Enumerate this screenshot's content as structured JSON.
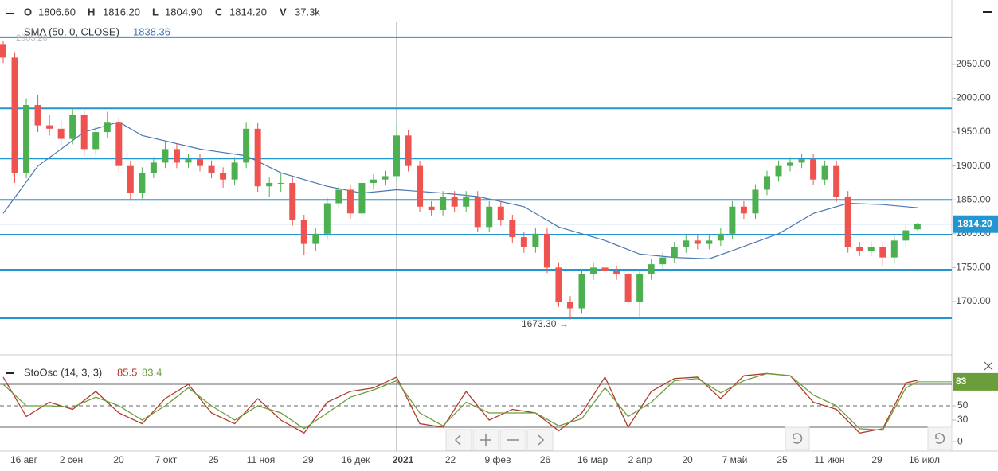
{
  "chart_data": [
    {
      "type": "candlestick",
      "legend": {
        "o_label": "O",
        "o": "1806.60",
        "h_label": "H",
        "h": "1816.20",
        "l_label": "L",
        "l": "1804.90",
        "c_label": "C",
        "c": "1814.20",
        "v_label": "V",
        "v": "37.3k"
      },
      "up_color": "#4caf50",
      "down_color": "#ef5350",
      "ylim": [
        1622.5,
        2145
      ],
      "yticks": [
        {
          "value": 1700,
          "label": "1700.00"
        },
        {
          "value": 1750,
          "label": "1750.00"
        },
        {
          "value": 1800,
          "label": "1800.00"
        },
        {
          "value": 1850,
          "label": "1850.00"
        },
        {
          "value": 1900,
          "label": "1900.00"
        },
        {
          "value": 1950,
          "label": "1950.00"
        },
        {
          "value": 2000,
          "label": "2000.00"
        },
        {
          "value": 2050,
          "label": "2050.00"
        }
      ],
      "levels": [
        2090,
        1985,
        1911,
        1850,
        1798.6,
        1747,
        1675.3
      ],
      "level_color": "#2196d3",
      "price_label": "1814.20",
      "max_label": "2085.20",
      "min_label": "1673.30 →",
      "categories": [
        "16 авг",
        "2 сен",
        "20",
        "7 окт",
        "25",
        "11 ноя",
        "29",
        "16 дек",
        "2021",
        "22",
        "9 фев",
        "26",
        "16 мар",
        "2 апр",
        "20",
        "7 май",
        "25",
        "11 июн",
        "29",
        "16 июл"
      ],
      "candles": [
        [
          2080,
          2085.2,
          2052,
          2060
        ],
        [
          2060,
          2068,
          1875,
          1890
        ],
        [
          1890,
          2000,
          1882,
          1990
        ],
        [
          1990,
          2005,
          1950,
          1960
        ],
        [
          1960,
          1975,
          1945,
          1955
        ],
        [
          1955,
          1968,
          1930,
          1940
        ],
        [
          1940,
          1985,
          1932,
          1975
        ],
        [
          1975,
          1983,
          1915,
          1925
        ],
        [
          1925,
          1958,
          1917,
          1950
        ],
        [
          1950,
          1980,
          1942,
          1965
        ],
        [
          1965,
          1972,
          1892,
          1900
        ],
        [
          1900,
          1908,
          1850,
          1860
        ],
        [
          1860,
          1898,
          1852,
          1890
        ],
        [
          1890,
          1913,
          1882,
          1905
        ],
        [
          1905,
          1935,
          1897,
          1925
        ],
        [
          1925,
          1933,
          1897,
          1905
        ],
        [
          1905,
          1918,
          1897,
          1910
        ],
        [
          1910,
          1918,
          1892,
          1900
        ],
        [
          1900,
          1908,
          1882,
          1890
        ],
        [
          1890,
          1898,
          1868,
          1880
        ],
        [
          1880,
          1913,
          1872,
          1905
        ],
        [
          1905,
          1965,
          1897,
          1955
        ],
        [
          1955,
          1963,
          1862,
          1870
        ],
        [
          1870,
          1883,
          1855,
          1875
        ],
        [
          1875,
          1890,
          1862,
          1875
        ],
        [
          1875,
          1883,
          1812,
          1820
        ],
        [
          1820,
          1828,
          1768,
          1785
        ],
        [
          1785,
          1808,
          1775,
          1800
        ],
        [
          1800,
          1853,
          1792,
          1845
        ],
        [
          1845,
          1873,
          1837,
          1865
        ],
        [
          1865,
          1873,
          1822,
          1830
        ],
        [
          1830,
          1883,
          1822,
          1875
        ],
        [
          1875,
          1888,
          1865,
          1880
        ],
        [
          1880,
          1893,
          1872,
          1885
        ],
        [
          1885,
          1962,
          1877,
          1945
        ],
        [
          1945,
          1953,
          1892,
          1900
        ],
        [
          1900,
          1908,
          1832,
          1840
        ],
        [
          1840,
          1848,
          1827,
          1835
        ],
        [
          1835,
          1863,
          1827,
          1855
        ],
        [
          1855,
          1863,
          1832,
          1840
        ],
        [
          1840,
          1863,
          1832,
          1855
        ],
        [
          1855,
          1863,
          1802,
          1810
        ],
        [
          1810,
          1848,
          1802,
          1840
        ],
        [
          1840,
          1848,
          1812,
          1820
        ],
        [
          1820,
          1828,
          1787,
          1795
        ],
        [
          1795,
          1803,
          1772,
          1780
        ],
        [
          1780,
          1808,
          1772,
          1800
        ],
        [
          1800,
          1808,
          1742,
          1750
        ],
        [
          1750,
          1758,
          1692,
          1700
        ],
        [
          1700,
          1708,
          1673.3,
          1690
        ],
        [
          1690,
          1748,
          1682,
          1740
        ],
        [
          1740,
          1758,
          1732,
          1750
        ],
        [
          1750,
          1758,
          1737,
          1745
        ],
        [
          1745,
          1753,
          1732,
          1740
        ],
        [
          1740,
          1748,
          1692,
          1700
        ],
        [
          1700,
          1748,
          1678,
          1740
        ],
        [
          1740,
          1763,
          1732,
          1755
        ],
        [
          1755,
          1773,
          1747,
          1765
        ],
        [
          1765,
          1788,
          1757,
          1780
        ],
        [
          1780,
          1798,
          1772,
          1790
        ],
        [
          1790,
          1798,
          1777,
          1785
        ],
        [
          1785,
          1798,
          1777,
          1790
        ],
        [
          1790,
          1808,
          1782,
          1800
        ],
        [
          1800,
          1848,
          1792,
          1840
        ],
        [
          1840,
          1848,
          1822,
          1830
        ],
        [
          1830,
          1873,
          1822,
          1865
        ],
        [
          1865,
          1893,
          1857,
          1885
        ],
        [
          1885,
          1908,
          1877,
          1900
        ],
        [
          1900,
          1913,
          1892,
          1905
        ],
        [
          1905,
          1918,
          1897,
          1910
        ],
        [
          1910,
          1918,
          1872,
          1880
        ],
        [
          1880,
          1908,
          1872,
          1900
        ],
        [
          1900,
          1908,
          1847,
          1855
        ],
        [
          1855,
          1863,
          1772,
          1780
        ],
        [
          1780,
          1788,
          1767,
          1775
        ],
        [
          1775,
          1788,
          1767,
          1780
        ],
        [
          1780,
          1788,
          1752,
          1765
        ],
        [
          1765,
          1798,
          1757,
          1790
        ],
        [
          1790,
          1813,
          1782,
          1805
        ],
        [
          1806.6,
          1816.2,
          1804.9,
          1814.2
        ]
      ],
      "sma": {
        "name": "SMA (50, 0, CLOSE)",
        "value_label": "1838.36",
        "color": "#4a77b0",
        "x": [
          0,
          3,
          7,
          10,
          12,
          17,
          21,
          24,
          28,
          31,
          34,
          38,
          41,
          45,
          48,
          52,
          55,
          58,
          61,
          63,
          67,
          70,
          73,
          76,
          79
        ],
        "values": [
          1830,
          1900,
          1950,
          1965,
          1945,
          1925,
          1915,
          1890,
          1870,
          1860,
          1865,
          1860,
          1855,
          1840,
          1810,
          1790,
          1770,
          1765,
          1763,
          1775,
          1800,
          1830,
          1845,
          1843,
          1838.36
        ]
      }
    },
    {
      "type": "line",
      "name": "StoOsc (14, 3, 3)",
      "ylim": [
        -11,
        111
      ],
      "yticks": [
        0,
        30,
        50
      ],
      "levels": [
        80,
        50,
        20
      ],
      "badge": "83",
      "badge_color": "#6b9e3a",
      "x": [
        0,
        2,
        4,
        6,
        8,
        10,
        12,
        14,
        16,
        18,
        20,
        22,
        24,
        26,
        28,
        30,
        32,
        34,
        36,
        38,
        40,
        42,
        44,
        46,
        48,
        50,
        52,
        54,
        56,
        58,
        60,
        62,
        64,
        66,
        68,
        70,
        72,
        74,
        76,
        78,
        79
      ],
      "series": [
        {
          "color": "#b03a2e",
          "value_label": "85.5",
          "values": [
            90,
            35,
            55,
            45,
            70,
            40,
            25,
            60,
            80,
            40,
            25,
            60,
            30,
            12,
            55,
            70,
            75,
            90,
            25,
            20,
            70,
            30,
            45,
            40,
            15,
            40,
            90,
            20,
            70,
            88,
            90,
            60,
            92,
            95,
            92,
            55,
            45,
            12,
            18,
            82,
            85.5
          ]
        },
        {
          "color": "#6b9e3a",
          "value_label": "83.4",
          "values": [
            80,
            50,
            50,
            48,
            62,
            50,
            30,
            50,
            75,
            50,
            30,
            50,
            40,
            18,
            40,
            62,
            72,
            85,
            40,
            22,
            55,
            40,
            40,
            40,
            22,
            32,
            75,
            35,
            55,
            85,
            88,
            68,
            85,
            95,
            92,
            65,
            50,
            18,
            16,
            75,
            83.4
          ]
        }
      ]
    }
  ]
}
